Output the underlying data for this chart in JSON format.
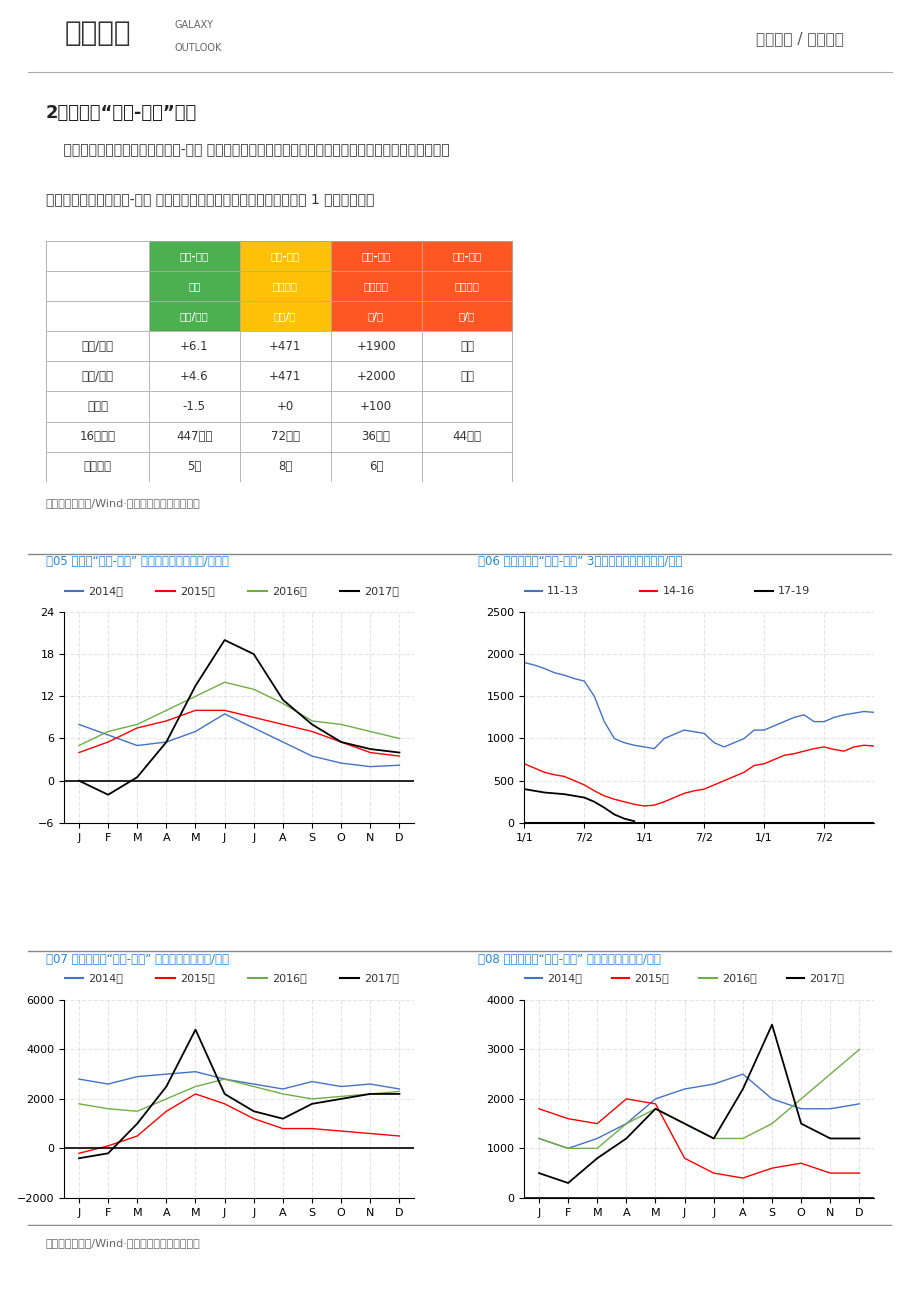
{
  "title_main": "2、气候与“胶水-杯胶”价差",
  "header_text": "研发报告 / 天然橡胶",
  "source_text": "资料来源：万德/Wind·银河期货能源化工事业部",
  "paragraph_line1": "    泰国从暴雨中恢复了过来，胶水-杯胶 价差明显走低，供应回复。马来西亚处于旺产，供应正常。海南东",
  "paragraph_line2": "南部地区已停割，胶水-杯胶 价差达到年内高値，预计西部地区也将在 1 月中旬停割。",
  "col_header_row1": [
    "胶水-杯胶",
    "胶水-杯胶",
    "胶水-杯胶",
    "胶水-杯胶"
  ],
  "col_header_row2": [
    "泰国",
    "马来西亚",
    "中国海南",
    "中国云南"
  ],
  "col_header_row3": [
    "泰铱/公斤",
    "美元/吨",
    "元/吨",
    "元/吨"
  ],
  "col_colors": [
    "#4CAF50",
    "#FFC107",
    "#FF5722",
    "#FF5722"
  ],
  "row_labels": [
    "偑周/上周",
    "偒周/本周",
    "涨跌値",
    "16年产量",
    "供应热度"
  ],
  "table_data": [
    [
      "+6.1",
      "+471",
      "+1900",
      "停割"
    ],
    [
      "+4.6",
      "+471",
      "+2000",
      "停割"
    ],
    [
      "-1.5",
      "+0",
      "+100",
      ""
    ],
    [
      "447万吨",
      "72万吨",
      "36万吨",
      "44万吨"
    ],
    [
      "5度",
      "8度",
      "6度",
      ""
    ]
  ],
  "fig05_title": "图05 泰国：“胶水-杯胶” 季节性折线图（泰铱/千克）",
  "fig06_title": "图06 马来西亚：“胶水-杯胶” 3年季节性折线图（美元/吨）",
  "fig07_title": "图07 中国海南：“胶水-杯胶” 季节性折线图（元/吨）",
  "fig08_title": "图08 中国云南：“胶水-杯胶” 季节性折线图（元/吨）",
  "chart_title_color": "#1E88E5",
  "months_labels": [
    "J",
    "F",
    "M",
    "A",
    "M",
    "J",
    "J",
    "A",
    "S",
    "O",
    "N",
    "D"
  ],
  "fig05_colors": [
    "#4472C4",
    "#FF0000",
    "#70AD47",
    "#000000"
  ],
  "fig05_legend": [
    "2014年",
    "2015年",
    "2016年",
    "2017年"
  ],
  "fig05_ylim": [
    -6,
    24
  ],
  "fig05_yticks": [
    -6,
    0,
    6,
    12,
    18,
    24
  ],
  "fig05_s14": [
    8.0,
    6.5,
    5.0,
    5.5,
    7.0,
    9.5,
    7.5,
    5.5,
    3.5,
    2.5,
    2.0,
    2.2
  ],
  "fig05_s15": [
    4.0,
    5.5,
    7.5,
    8.5,
    10.0,
    10.0,
    9.0,
    8.0,
    7.0,
    5.5,
    4.0,
    3.5
  ],
  "fig05_s16": [
    5.0,
    7.0,
    8.0,
    10.0,
    12.0,
    14.0,
    13.0,
    11.0,
    8.5,
    8.0,
    7.0,
    6.0
  ],
  "fig05_s17": [
    0.0,
    -2.0,
    0.5,
    5.5,
    13.5,
    20.0,
    18.0,
    11.5,
    8.0,
    5.5,
    4.5,
    4.0
  ],
  "fig06_colors": [
    "#4472C4",
    "#FF0000",
    "#000000"
  ],
  "fig06_legend": [
    "11-13",
    "14-16",
    "17-19"
  ],
  "fig06_ylim": [
    0,
    2500
  ],
  "fig06_yticks": [
    0,
    500,
    1000,
    1500,
    2000,
    2500
  ],
  "fig06_xlabels": [
    "1/1",
    "7/2",
    "1/1",
    "7/2",
    "1/1",
    "7/2"
  ],
  "fig06_s1113": [
    1900,
    1870,
    1830,
    1780,
    1750,
    1710,
    1680,
    1500,
    1200,
    1000,
    950,
    920,
    900,
    880,
    1000,
    1050,
    1100,
    1080,
    1060,
    950,
    900,
    950,
    1000,
    1100,
    1100,
    1150,
    1200,
    1250,
    1280,
    1200,
    1200,
    1250,
    1280,
    1300,
    1320,
    1310
  ],
  "fig06_s1416": [
    700,
    650,
    600,
    570,
    550,
    500,
    450,
    380,
    320,
    280,
    250,
    220,
    200,
    210,
    250,
    300,
    350,
    380,
    400,
    450,
    500,
    550,
    600,
    680,
    700,
    750,
    800,
    820,
    850,
    880,
    900,
    870,
    850,
    900,
    920,
    910
  ],
  "fig06_s1719": [
    400,
    380,
    360,
    350,
    340,
    320,
    300,
    250,
    180,
    100,
    50,
    20,
    0,
    0,
    0,
    0,
    0,
    0,
    0,
    0,
    0,
    0,
    0,
    0,
    0,
    0,
    0,
    0,
    0,
    0,
    0,
    0,
    0,
    0,
    0,
    0
  ],
  "fig07_colors": [
    "#4472C4",
    "#FF0000",
    "#70AD47",
    "#000000"
  ],
  "fig07_legend": [
    "2014年",
    "2015年",
    "2016年",
    "2017年"
  ],
  "fig07_ylim": [
    -2000,
    6000
  ],
  "fig07_yticks": [
    -2000,
    0,
    2000,
    4000,
    6000
  ],
  "fig07_s14": [
    2800,
    2600,
    2900,
    3000,
    3100,
    2800,
    2600,
    2400,
    2700,
    2500,
    2600,
    2400
  ],
  "fig07_s15": [
    -200,
    100,
    500,
    1500,
    2200,
    1800,
    1200,
    800,
    800,
    700,
    600,
    500
  ],
  "fig07_s16": [
    1800,
    1600,
    1500,
    2000,
    2500,
    2800,
    2500,
    2200,
    2000,
    2100,
    2200,
    2300
  ],
  "fig07_s17": [
    -400,
    -200,
    1000,
    2500,
    4800,
    2200,
    1500,
    1200,
    1800,
    2000,
    2200,
    2200
  ],
  "fig08_colors": [
    "#4472C4",
    "#FF0000",
    "#70AD47",
    "#000000"
  ],
  "fig08_legend": [
    "2014年",
    "2015年",
    "2016年",
    "2017年"
  ],
  "fig08_ylim": [
    0,
    4000
  ],
  "fig08_yticks": [
    0,
    1000,
    2000,
    3000,
    4000
  ],
  "fig08_s14": [
    1200,
    1000,
    1200,
    1500,
    2000,
    2200,
    2300,
    2500,
    2000,
    1800,
    1800,
    1900
  ],
  "fig08_s15": [
    1800,
    1600,
    1500,
    2000,
    1900,
    800,
    500,
    400,
    600,
    700,
    500,
    500
  ],
  "fig08_s16": [
    1200,
    1000,
    1000,
    1500,
    1800,
    1500,
    1200,
    1200,
    1500,
    2000,
    2500,
    3000
  ],
  "fig08_s17": [
    500,
    300,
    800,
    1200,
    1800,
    1500,
    1200,
    2200,
    3500,
    1500,
    1200,
    1200
  ]
}
